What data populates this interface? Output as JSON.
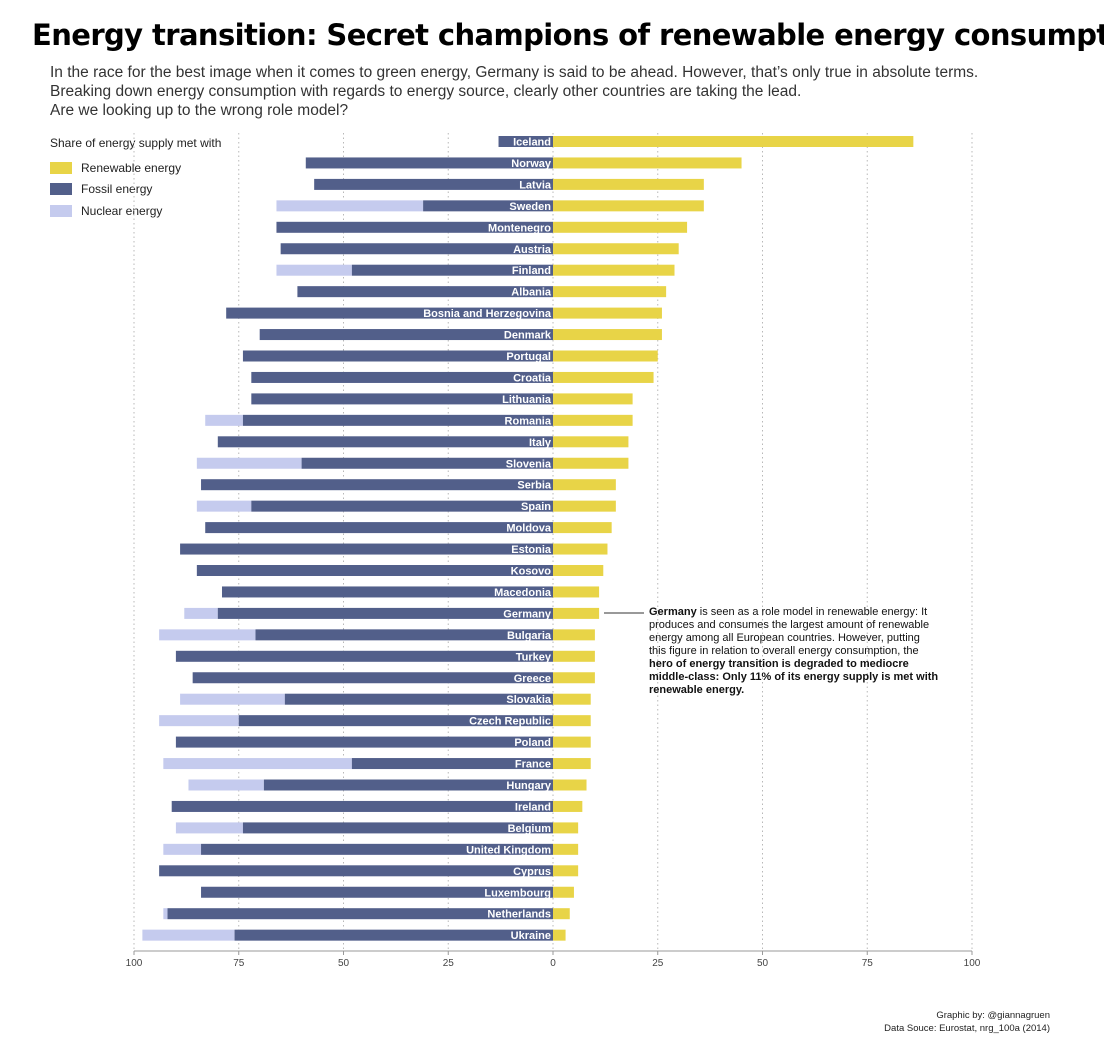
{
  "title": "Energy transition: Secret champions of renewable energy consumption",
  "subtitle": [
    "In the race for the best image when it comes to green energy, Germany is said to be ahead. However, that’s only true in absolute terms.",
    "Breaking down energy consumption with regards to energy source, clearly other countries are taking the lead.",
    "Are we looking up to the wrong role model?"
  ],
  "legend": {
    "title": "Share of energy supply met with",
    "items": [
      {
        "label": "Renewable energy",
        "color": "#e8d447",
        "icon": "yellow-swatch"
      },
      {
        "label": "Fossil energy",
        "color": "#525f8a",
        "icon": "navy-swatch"
      },
      {
        "label": "Nuclear energy",
        "color": "#c5cbee",
        "icon": "lavender-swatch"
      }
    ]
  },
  "annotation": {
    "p1_bold": "Germany",
    "p1_rest": " is seen as a role model in renewable energy: It produces and consumes the largest amount of renewable energy among all European countries. However, putting this figure in relation to overall energy consumption, the ",
    "p2_bold": "hero of energy transition is degraded to mediocre middle-class: Only 11% of its energy supply is met with renewable energy."
  },
  "credits": {
    "line1": "Graphic by: @giannagruen",
    "line2": "Data Souce: Eurostat, nrg_100a (2014)"
  },
  "chart_data": {
    "type": "bar",
    "orientation": "horizontal-diverging",
    "xlim": [
      -100,
      100
    ],
    "ticks": [
      100,
      75,
      50,
      25,
      0,
      25,
      50,
      75,
      100
    ],
    "grid": true,
    "colors": {
      "renewable": "#e8d447",
      "fossil": "#525f8a",
      "nuclear": "#c5cbee"
    },
    "categories": [
      "Iceland",
      "Norway",
      "Latvia",
      "Sweden",
      "Montenegro",
      "Austria",
      "Finland",
      "Albania",
      "Bosnia and Herzegovina",
      "Denmark",
      "Portugal",
      "Croatia",
      "Lithuania",
      "Romania",
      "Italy",
      "Slovenia",
      "Serbia",
      "Spain",
      "Moldova",
      "Estonia",
      "Kosovo",
      "Macedonia",
      "Germany",
      "Bulgaria",
      "Turkey",
      "Greece",
      "Slovakia",
      "Czech Republic",
      "Poland",
      "France",
      "Hungary",
      "Ireland",
      "Belgium",
      "United Kingdom",
      "Cyprus",
      "Luxembourg",
      "Netherlands",
      "Ukraine"
    ],
    "series": [
      {
        "name": "Renewable energy",
        "values": [
          86,
          45,
          36,
          36,
          32,
          30,
          29,
          27,
          26,
          26,
          25,
          24,
          19,
          19,
          18,
          18,
          15,
          15,
          14,
          13,
          12,
          11,
          11,
          10,
          10,
          10,
          9,
          9,
          9,
          9,
          8,
          7,
          6,
          6,
          6,
          5,
          4,
          3
        ]
      },
      {
        "name": "Fossil energy",
        "values": [
          13,
          59,
          57,
          31,
          66,
          65,
          48,
          61,
          78,
          70,
          74,
          72,
          72,
          74,
          80,
          60,
          84,
          72,
          83,
          89,
          85,
          79,
          80,
          71,
          90,
          86,
          64,
          75,
          90,
          48,
          69,
          91,
          74,
          84,
          94,
          84,
          92,
          76
        ]
      },
      {
        "name": "Nuclear energy",
        "values": [
          0,
          0,
          0,
          35,
          0,
          0,
          18,
          0,
          0,
          0,
          0,
          0,
          0,
          9,
          0,
          25,
          0,
          13,
          0,
          0,
          0,
          0,
          8,
          23,
          0,
          0,
          25,
          19,
          0,
          45,
          18,
          0,
          16,
          9,
          0,
          0,
          1,
          22
        ]
      }
    ]
  }
}
